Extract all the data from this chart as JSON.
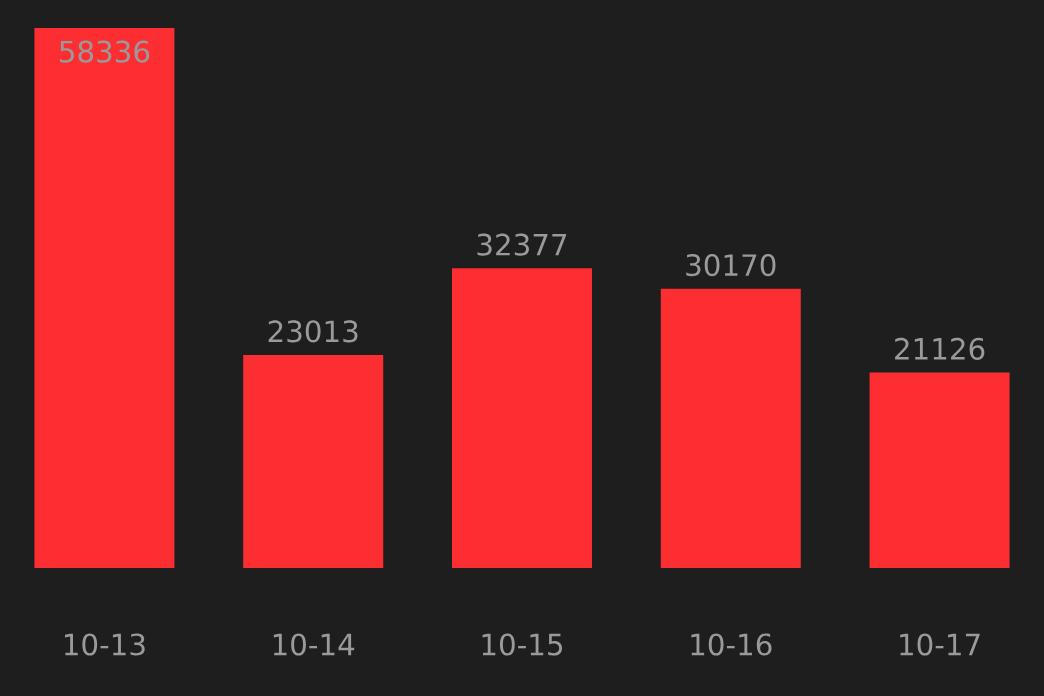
{
  "chart_data": {
    "type": "bar",
    "categories": [
      "10-13",
      "10-14",
      "10-15",
      "10-16",
      "10-17"
    ],
    "values": [
      58336,
      23013,
      32377,
      30170,
      21126
    ],
    "color": "#fc2e32",
    "data_labels": true
  }
}
